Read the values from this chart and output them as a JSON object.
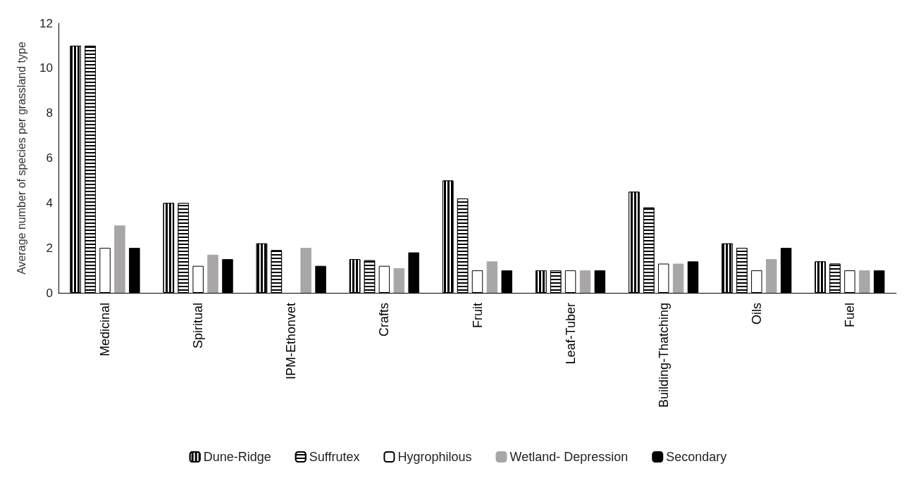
{
  "chart_data": {
    "type": "bar",
    "ylabel": "Average number of species per grassland type",
    "categories": [
      "Medicinal",
      "Spiritual",
      "IPM-Ethonvet",
      "Crafts",
      "Fruit",
      "Leaf-Tuber",
      "Building-Thatching",
      "Oils",
      "Fuel"
    ],
    "series": [
      {
        "name": "Dune-Ridge",
        "color": "#000000",
        "values": [
          11,
          4,
          2.2,
          1.5,
          5,
          1,
          4.5,
          2.2,
          1.4
        ]
      },
      {
        "name": "Suffrutex",
        "color": "#000000",
        "values": [
          11,
          4,
          1.9,
          1.45,
          4.2,
          1,
          3.8,
          2,
          1.3
        ]
      },
      {
        "name": "Hygrophilous",
        "color": "#ffffff",
        "values": [
          2,
          1.2,
          null,
          1.2,
          1,
          1,
          1.3,
          1,
          1
        ]
      },
      {
        "name": "Wetland- Depression",
        "color": "#a9a6a6",
        "values": [
          3,
          1.7,
          2,
          1.1,
          1.4,
          1,
          1.3,
          1.5,
          1
        ]
      },
      {
        "name": "Secondary",
        "color": "#000000",
        "values": [
          2,
          1.5,
          1.2,
          1.8,
          1,
          1,
          1.4,
          2,
          1
        ]
      }
    ],
    "ylim": [
      0,
      12
    ],
    "yticks": [
      0,
      2,
      4,
      6,
      8,
      10,
      12
    ],
    "grid": false,
    "legend": "bottom"
  }
}
